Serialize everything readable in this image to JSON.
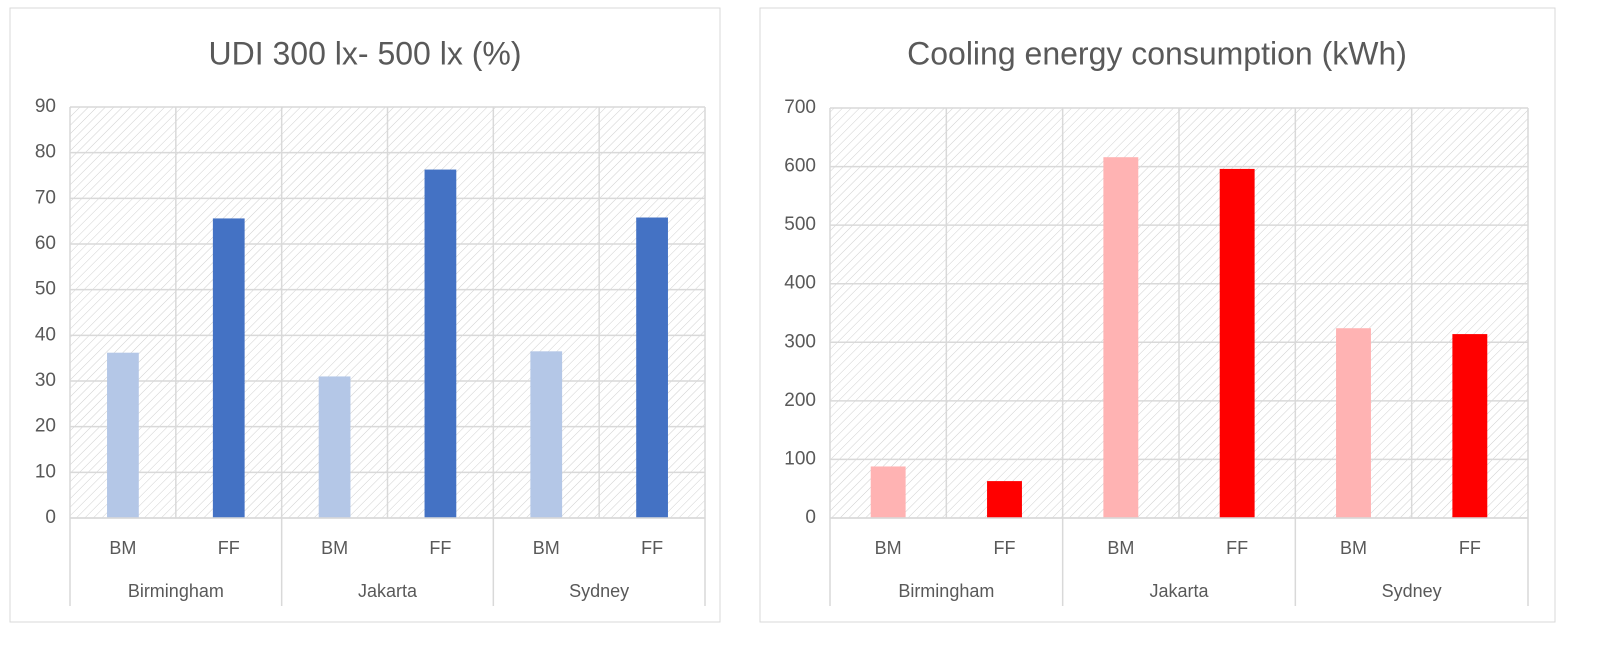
{
  "chart_data": [
    {
      "type": "bar",
      "title": "UDI 300 lx- 500 lx (%)",
      "categories": [
        "BM",
        "FF",
        "BM",
        "FF",
        "BM",
        "FF"
      ],
      "groups": [
        "Birmingham",
        "Jakarta",
        "Sydney"
      ],
      "values": [
        36.2,
        65.6,
        31,
        76.3,
        36.5,
        65.8
      ],
      "colors": [
        "#b4c7e7",
        "#4472c4",
        "#b4c7e7",
        "#4472c4",
        "#b4c7e7",
        "#4472c4"
      ],
      "ylim": [
        0,
        90
      ],
      "yticks": [
        0,
        10,
        20,
        30,
        40,
        50,
        60,
        70,
        80,
        90
      ],
      "grid": true
    },
    {
      "type": "bar",
      "title": "Cooling energy consumption (kWh)",
      "categories": [
        "BM",
        "FF",
        "BM",
        "FF",
        "BM",
        "FF"
      ],
      "groups": [
        "Birmingham",
        "Jakarta",
        "Sydney"
      ],
      "values": [
        88,
        63,
        616,
        596,
        324,
        314
      ],
      "colors": [
        "#ffb3b3",
        "#ff0000",
        "#ffb3b3",
        "#ff0000",
        "#ffb3b3",
        "#ff0000"
      ],
      "ylim": [
        0,
        700
      ],
      "yticks": [
        0,
        100,
        200,
        300,
        400,
        500,
        600,
        700
      ],
      "grid": true
    }
  ]
}
